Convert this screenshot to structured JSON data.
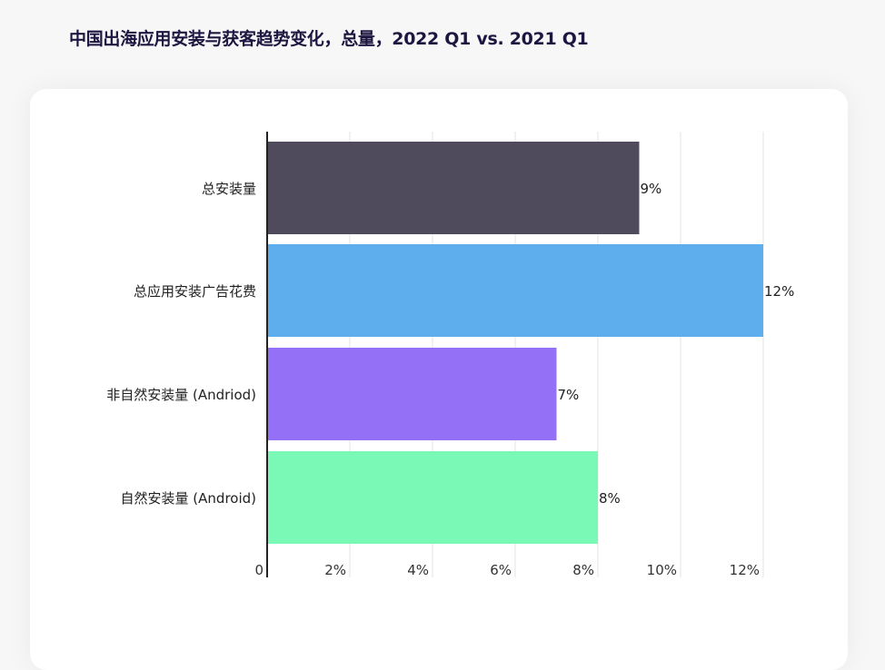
{
  "chart_data": {
    "type": "bar",
    "orientation": "horizontal",
    "title": "中国出海应用安装与获客趋势变化，总量，2022 Q1 vs. 2021 Q1",
    "categories": [
      "总安装量",
      "总应用安装广告花费",
      "非自然安装量 (Andriod)",
      "自然安装量 (Android)"
    ],
    "values": [
      9,
      12,
      7,
      8
    ],
    "data_labels": [
      "9%",
      "12%",
      "7%",
      "8%"
    ],
    "colors": [
      "#4f4b5c",
      "#5eaeee",
      "#9370f5",
      "#7af8b5"
    ],
    "xlim": [
      0,
      12
    ],
    "xticks": [
      0,
      2,
      4,
      6,
      8,
      10,
      12
    ],
    "xtick_labels": [
      "0",
      "2%",
      "4%",
      "6%",
      "8%",
      "10%",
      "12%"
    ],
    "grid": "vertical",
    "xlabel": "",
    "ylabel": ""
  }
}
